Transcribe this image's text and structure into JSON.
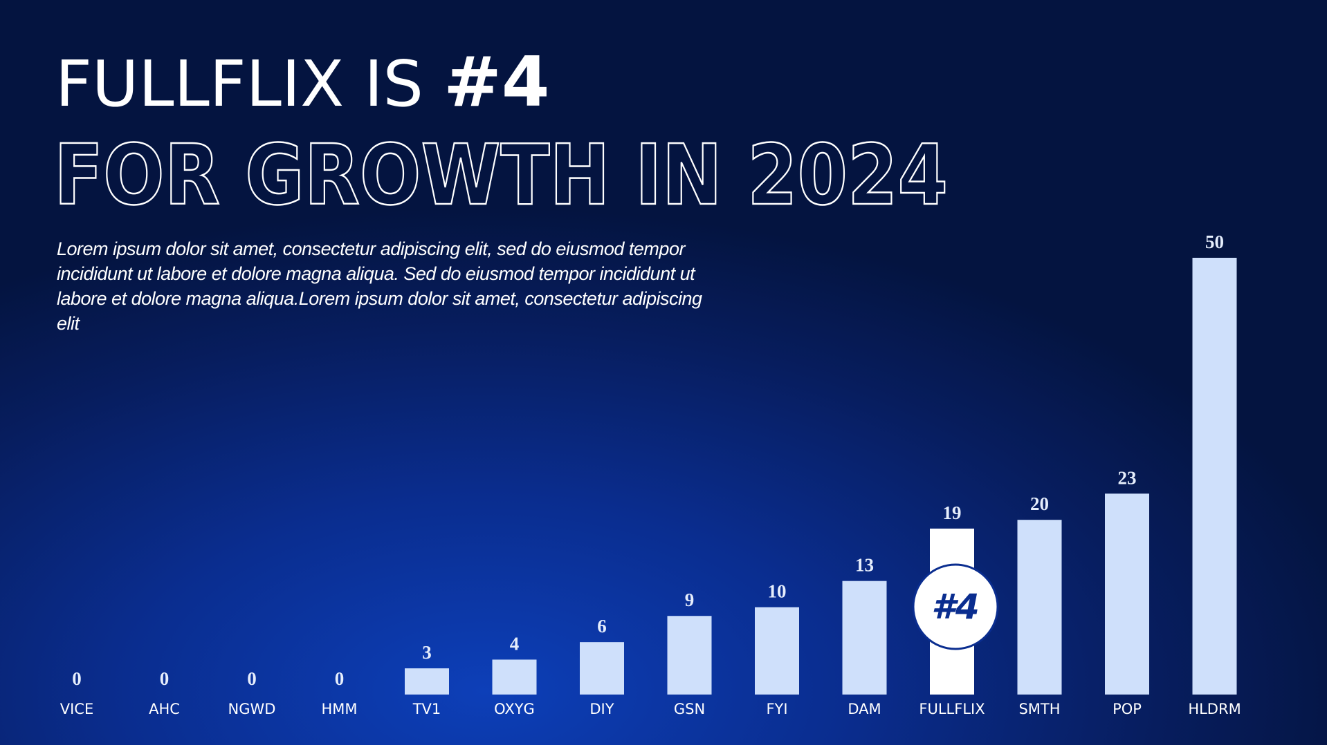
{
  "header": {
    "title": "FULLFLIX IS",
    "title_highlight": "#4",
    "subtitle": "FOR GROWTH IN 2024",
    "description": "Lorem ipsum dolor sit amet, consectetur adipiscing elit, sed do eiusmod tempor incididunt ut labore et dolore magna aliqua. Sed do eiusmod tempor incididunt ut labore et dolore magna aliqua.Lorem ipsum dolor sit amet, consectetur adipiscing elit"
  },
  "chart_data": {
    "type": "bar",
    "categories": [
      "VICE",
      "AHC",
      "NGWD",
      "HMM",
      "TV1",
      "OXYG",
      "DIY",
      "GSN",
      "FYI",
      "DAM",
      "FULLFLIX",
      "SMTH",
      "POP",
      "HLDRM"
    ],
    "values": [
      0,
      0,
      0,
      0,
      3,
      4,
      6,
      9,
      10,
      13,
      19,
      20,
      23,
      50
    ],
    "colors": [
      "#cfe0fb",
      "#cfe0fb",
      "#cfe0fb",
      "#cfe0fb",
      "#cfe0fb",
      "#cfe0fb",
      "#cfe0fb",
      "#cfe0fb",
      "#cfe0fb",
      "#cfe0fb",
      "#ffffff",
      "#cfe0fb",
      "#cfe0fb",
      "#cfe0fb"
    ],
    "badge": {
      "label": "#4",
      "category": "FULLFLIX"
    }
  }
}
